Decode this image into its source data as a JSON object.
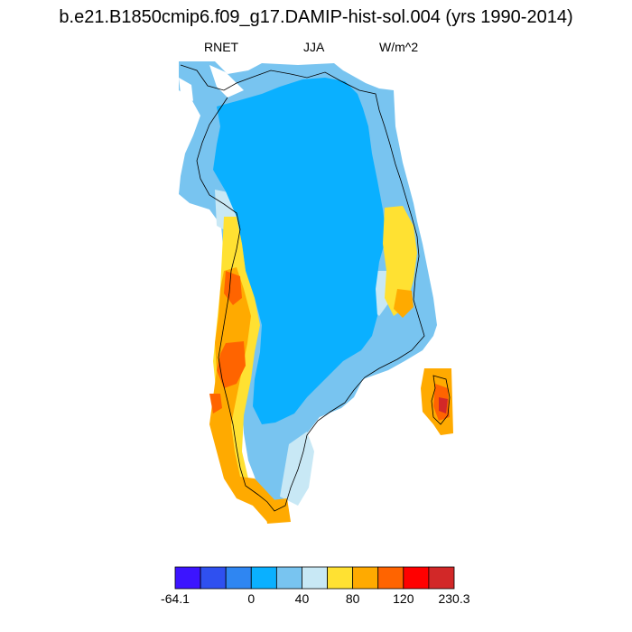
{
  "title": "b.e21.B1850cmip6.f09_g17.DAMIP-hist-sol.004 (yrs 1990-2014)",
  "left_label": "RNET",
  "center_label": "JJA",
  "right_label": "W/m^2",
  "colorbar": {
    "colors": [
      "#3c14ff",
      "#2f50f0",
      "#2f86f2",
      "#0ab0ff",
      "#78c4f0",
      "#c8e8f5",
      "#ffe132",
      "#ffaa00",
      "#ff6400",
      "#ff0000",
      "#d22828"
    ],
    "labels": [
      "-64.1",
      "0",
      "40",
      "80",
      "120",
      "230.3"
    ]
  },
  "colors": {
    "ice_interior": "#0ab0ff",
    "margin_blue": "#78c4f0",
    "margin_pale": "#c8e8f5",
    "yellow": "#ffe132",
    "orange": "#ffaa00",
    "dark_orange": "#ff6400",
    "red": "#d22828"
  }
}
